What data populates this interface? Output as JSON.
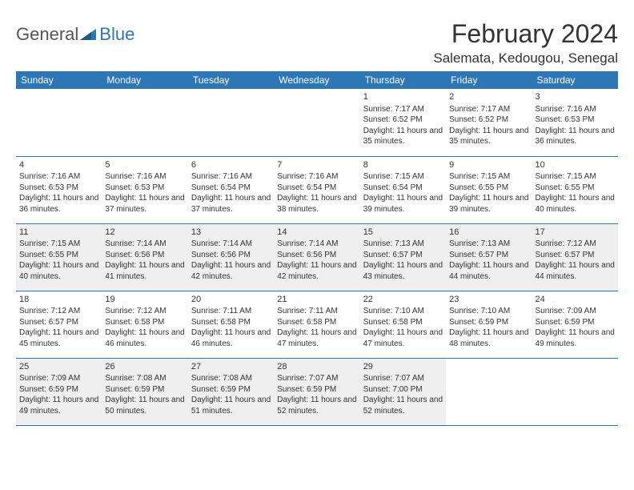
{
  "logo": {
    "general": "General",
    "blue": "Blue"
  },
  "title": "February 2024",
  "location": "Salemata, Kedougou, Senegal",
  "colors": {
    "header_bg": "#2e77b6",
    "shaded_bg": "#efefef",
    "text": "#333333",
    "border": "#2e77b6"
  },
  "dayHeaders": [
    "Sunday",
    "Monday",
    "Tuesday",
    "Wednesday",
    "Thursday",
    "Friday",
    "Saturday"
  ],
  "weeks": [
    [
      null,
      null,
      null,
      null,
      {
        "n": "1",
        "sr": "Sunrise: 7:17 AM",
        "ss": "Sunset: 6:52 PM",
        "dl": "Daylight: 11 hours and 35 minutes."
      },
      {
        "n": "2",
        "sr": "Sunrise: 7:17 AM",
        "ss": "Sunset: 6:52 PM",
        "dl": "Daylight: 11 hours and 35 minutes."
      },
      {
        "n": "3",
        "sr": "Sunrise: 7:16 AM",
        "ss": "Sunset: 6:53 PM",
        "dl": "Daylight: 11 hours and 36 minutes."
      }
    ],
    [
      {
        "n": "4",
        "sr": "Sunrise: 7:16 AM",
        "ss": "Sunset: 6:53 PM",
        "dl": "Daylight: 11 hours and 36 minutes."
      },
      {
        "n": "5",
        "sr": "Sunrise: 7:16 AM",
        "ss": "Sunset: 6:53 PM",
        "dl": "Daylight: 11 hours and 37 minutes."
      },
      {
        "n": "6",
        "sr": "Sunrise: 7:16 AM",
        "ss": "Sunset: 6:54 PM",
        "dl": "Daylight: 11 hours and 37 minutes."
      },
      {
        "n": "7",
        "sr": "Sunrise: 7:16 AM",
        "ss": "Sunset: 6:54 PM",
        "dl": "Daylight: 11 hours and 38 minutes."
      },
      {
        "n": "8",
        "sr": "Sunrise: 7:15 AM",
        "ss": "Sunset: 6:54 PM",
        "dl": "Daylight: 11 hours and 39 minutes."
      },
      {
        "n": "9",
        "sr": "Sunrise: 7:15 AM",
        "ss": "Sunset: 6:55 PM",
        "dl": "Daylight: 11 hours and 39 minutes."
      },
      {
        "n": "10",
        "sr": "Sunrise: 7:15 AM",
        "ss": "Sunset: 6:55 PM",
        "dl": "Daylight: 11 hours and 40 minutes."
      }
    ],
    [
      {
        "n": "11",
        "sr": "Sunrise: 7:15 AM",
        "ss": "Sunset: 6:55 PM",
        "dl": "Daylight: 11 hours and 40 minutes."
      },
      {
        "n": "12",
        "sr": "Sunrise: 7:14 AM",
        "ss": "Sunset: 6:56 PM",
        "dl": "Daylight: 11 hours and 41 minutes."
      },
      {
        "n": "13",
        "sr": "Sunrise: 7:14 AM",
        "ss": "Sunset: 6:56 PM",
        "dl": "Daylight: 11 hours and 42 minutes."
      },
      {
        "n": "14",
        "sr": "Sunrise: 7:14 AM",
        "ss": "Sunset: 6:56 PM",
        "dl": "Daylight: 11 hours and 42 minutes."
      },
      {
        "n": "15",
        "sr": "Sunrise: 7:13 AM",
        "ss": "Sunset: 6:57 PM",
        "dl": "Daylight: 11 hours and 43 minutes."
      },
      {
        "n": "16",
        "sr": "Sunrise: 7:13 AM",
        "ss": "Sunset: 6:57 PM",
        "dl": "Daylight: 11 hours and 44 minutes."
      },
      {
        "n": "17",
        "sr": "Sunrise: 7:12 AM",
        "ss": "Sunset: 6:57 PM",
        "dl": "Daylight: 11 hours and 44 minutes."
      }
    ],
    [
      {
        "n": "18",
        "sr": "Sunrise: 7:12 AM",
        "ss": "Sunset: 6:57 PM",
        "dl": "Daylight: 11 hours and 45 minutes."
      },
      {
        "n": "19",
        "sr": "Sunrise: 7:12 AM",
        "ss": "Sunset: 6:58 PM",
        "dl": "Daylight: 11 hours and 46 minutes."
      },
      {
        "n": "20",
        "sr": "Sunrise: 7:11 AM",
        "ss": "Sunset: 6:58 PM",
        "dl": "Daylight: 11 hours and 46 minutes."
      },
      {
        "n": "21",
        "sr": "Sunrise: 7:11 AM",
        "ss": "Sunset: 6:58 PM",
        "dl": "Daylight: 11 hours and 47 minutes."
      },
      {
        "n": "22",
        "sr": "Sunrise: 7:10 AM",
        "ss": "Sunset: 6:58 PM",
        "dl": "Daylight: 11 hours and 47 minutes."
      },
      {
        "n": "23",
        "sr": "Sunrise: 7:10 AM",
        "ss": "Sunset: 6:59 PM",
        "dl": "Daylight: 11 hours and 48 minutes."
      },
      {
        "n": "24",
        "sr": "Sunrise: 7:09 AM",
        "ss": "Sunset: 6:59 PM",
        "dl": "Daylight: 11 hours and 49 minutes."
      }
    ],
    [
      {
        "n": "25",
        "sr": "Sunrise: 7:09 AM",
        "ss": "Sunset: 6:59 PM",
        "dl": "Daylight: 11 hours and 49 minutes."
      },
      {
        "n": "26",
        "sr": "Sunrise: 7:08 AM",
        "ss": "Sunset: 6:59 PM",
        "dl": "Daylight: 11 hours and 50 minutes."
      },
      {
        "n": "27",
        "sr": "Sunrise: 7:08 AM",
        "ss": "Sunset: 6:59 PM",
        "dl": "Daylight: 11 hours and 51 minutes."
      },
      {
        "n": "28",
        "sr": "Sunrise: 7:07 AM",
        "ss": "Sunset: 6:59 PM",
        "dl": "Daylight: 11 hours and 52 minutes."
      },
      {
        "n": "29",
        "sr": "Sunrise: 7:07 AM",
        "ss": "Sunset: 7:00 PM",
        "dl": "Daylight: 11 hours and 52 minutes."
      },
      null,
      null
    ]
  ],
  "shadedRows": [
    2,
    4
  ]
}
